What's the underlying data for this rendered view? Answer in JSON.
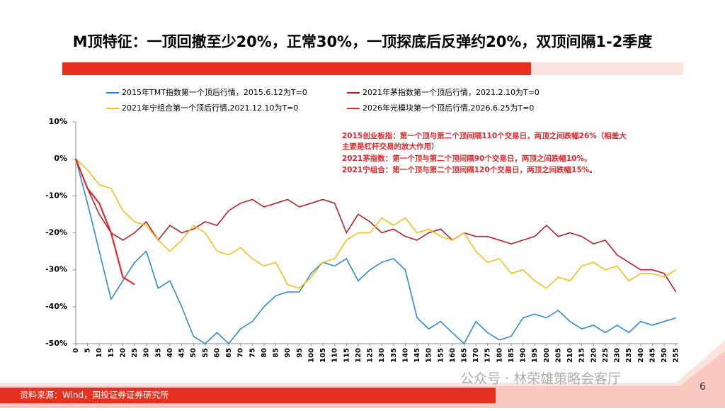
{
  "chart_data": {
    "type": "line",
    "title": "M顶特征：一顶回撤至少20%，正常30%，一顶探底后反弹约20%，双顶间隔1-2季度",
    "x": [
      0,
      5,
      10,
      15,
      20,
      25,
      30,
      35,
      40,
      45,
      50,
      55,
      60,
      65,
      70,
      75,
      80,
      85,
      90,
      95,
      100,
      105,
      110,
      115,
      120,
      125,
      130,
      135,
      140,
      145,
      150,
      155,
      160,
      165,
      170,
      175,
      180,
      185,
      190,
      195,
      200,
      205,
      210,
      215,
      220,
      225,
      230,
      235,
      240,
      245,
      250,
      255
    ],
    "xlim": [
      0,
      256
    ],
    "xticks": [
      0,
      5,
      10,
      15,
      20,
      25,
      30,
      35,
      40,
      45,
      50,
      55,
      60,
      65,
      70,
      75,
      80,
      85,
      90,
      95,
      100,
      105,
      110,
      115,
      120,
      125,
      130,
      135,
      140,
      145,
      150,
      155,
      160,
      165,
      170,
      175,
      180,
      185,
      190,
      195,
      200,
      205,
      210,
      215,
      220,
      225,
      230,
      235,
      240,
      245,
      250,
      255
    ],
    "ylim": [
      -50,
      10
    ],
    "yticks": [
      {
        "value": 10,
        "label": "10%"
      },
      {
        "value": 0,
        "label": "0%"
      },
      {
        "value": -10,
        "label": "-10%"
      },
      {
        "value": -20,
        "label": "-20%"
      },
      {
        "value": -30,
        "label": "-30%"
      },
      {
        "value": -40,
        "label": "-40%"
      },
      {
        "value": -50,
        "label": "-50%"
      }
    ],
    "series": [
      {
        "name": "2015年TMT指数第一个顶后行情，2015.6.12为T=0",
        "color": "#2e8bd0",
        "values": [
          0,
          -12,
          -25,
          -38,
          -33,
          -28,
          -25,
          -35,
          -33,
          -40,
          -48,
          -50,
          -47,
          -50,
          -46,
          -44,
          -40,
          -37,
          -36,
          -36,
          -31,
          -28,
          -29,
          -27,
          -33,
          -30,
          -28,
          -27,
          -30,
          -43,
          -46,
          -44,
          -47,
          -50,
          -44,
          -47,
          -49,
          -48,
          -43,
          -42,
          -43,
          -41,
          -44,
          -46,
          -45,
          -47,
          -45,
          -47,
          -44,
          -45,
          -44,
          -43
        ]
      },
      {
        "name": "2021年茅指数第一个顶后行情，2021.2.10为T=0",
        "color": "#b5202a",
        "values": [
          0,
          -8,
          -15,
          -20,
          -22,
          -20,
          -17,
          -22,
          -18,
          -20,
          -19,
          -17,
          -18,
          -14,
          -12,
          -11,
          -13,
          -12,
          -11,
          -13,
          -12,
          -11,
          -12,
          -20,
          -15,
          -17,
          -20,
          -19,
          -21,
          -22,
          -20,
          -19,
          -22,
          -20,
          -21,
          -21,
          -22,
          -23,
          -22,
          -21,
          -18,
          -21,
          -20,
          -21,
          -23,
          -22,
          -26,
          -28,
          -30,
          -30,
          -31,
          -36
        ]
      },
      {
        "name": "2021年宁组合第一个顶后行情,2021.12.10为T=0",
        "color": "#f2c01e",
        "values": [
          0,
          -3,
          -7,
          -8,
          -14,
          -17,
          -18,
          -22,
          -25,
          -22,
          -18,
          -20,
          -25,
          -26,
          -24,
          -27,
          -29,
          -28,
          -34,
          -35,
          -32,
          -28,
          -27,
          -22,
          -20,
          -20,
          -16,
          -18,
          -16,
          -20,
          -19,
          -21,
          -22,
          -20,
          -25,
          -28,
          -27,
          -31,
          -30,
          -33,
          -35,
          -32,
          -33,
          -29,
          -28,
          -30,
          -29,
          -33,
          -31,
          -31,
          -32,
          -30
        ]
      },
      {
        "name": "2026年光模块第一个顶后行情,2026.6.25为T=0",
        "color": "#e8262a",
        "values": [
          0,
          -8,
          -12,
          -20,
          -32,
          -34,
          null,
          null,
          null,
          null,
          null,
          null,
          null,
          null,
          null,
          null,
          null,
          null,
          null,
          null,
          null,
          null,
          null,
          null,
          null,
          null,
          null,
          null,
          null,
          null,
          null,
          null,
          null,
          null,
          null,
          null,
          null,
          null,
          null,
          null,
          null,
          null,
          null,
          null,
          null,
          null,
          null,
          null,
          null,
          null,
          null,
          null
        ]
      }
    ],
    "annotations": [
      "2015创业板指：第一个顶与第二个顶间隔110个交易日，两顶之间跌幅26%（相差大",
      "主要是杠杆交易的放大作用）",
      "2021茅指数：第一个顶与第二个顶间隔90个交易日，两顶之间跌幅10%。",
      "2021宁组合：第一个顶与第二个顶间隔120个交易日，两顶之间跌幅15%。"
    ],
    "source": "资料来源：Wind，国投证券证券研究所",
    "page_number": "6",
    "watermark": "公众号 · 林荣雄策略会客厅"
  }
}
